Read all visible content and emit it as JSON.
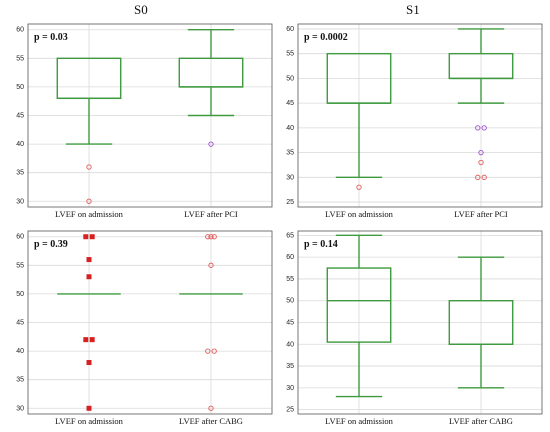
{
  "columns": [
    "S0",
    "S1"
  ],
  "colors": {
    "box": "#3e9a3e",
    "outlier": "#e05a5a",
    "outlier_alt": "#9a4fcf",
    "filled": "#d42020",
    "grid": "#d9d9d9",
    "frame": "#555555"
  },
  "chart_data": [
    {
      "type": "box",
      "column": "S0",
      "row": 1,
      "annotation": "p = 0.03",
      "ylim": [
        29,
        61
      ],
      "yticks": [
        30,
        35,
        40,
        45,
        50,
        55,
        60
      ],
      "categories": [
        "LVEF on admission",
        "LVEF after PCI"
      ],
      "boxes": [
        {
          "whisker_low": 40,
          "q1": 48,
          "median": 48,
          "q3": 55,
          "whisker_high": 55,
          "outliers": [
            {
              "y": 36,
              "style": "open"
            },
            {
              "y": 30,
              "style": "open"
            }
          ]
        },
        {
          "whisker_low": 45,
          "q1": 50,
          "median": 50,
          "q3": 55,
          "whisker_high": 60,
          "outliers": [
            {
              "y": 40,
              "style": "open-alt"
            }
          ]
        }
      ]
    },
    {
      "type": "box",
      "column": "S1",
      "row": 1,
      "annotation": "p = 0.0002",
      "ylim": [
        24,
        61
      ],
      "yticks": [
        25,
        30,
        35,
        40,
        45,
        50,
        55,
        60
      ],
      "categories": [
        "LVEF on admission",
        "LVEF after PCI"
      ],
      "boxes": [
        {
          "whisker_low": 30,
          "q1": 45,
          "median": 45,
          "q3": 55,
          "whisker_high": 55,
          "outliers": [
            {
              "y": 28,
              "style": "open"
            }
          ]
        },
        {
          "whisker_low": 45,
          "q1": 50,
          "median": 50,
          "q3": 55,
          "whisker_high": 60,
          "outliers": [
            {
              "y": 40,
              "style": "open-alt",
              "offset": -1
            },
            {
              "y": 40,
              "style": "open-alt",
              "offset": 1
            },
            {
              "y": 35,
              "style": "open-alt"
            },
            {
              "y": 33,
              "style": "open"
            },
            {
              "y": 30,
              "style": "open",
              "offset": -1
            },
            {
              "y": 30,
              "style": "open",
              "offset": 1
            }
          ]
        }
      ]
    },
    {
      "type": "box",
      "column": "S0",
      "row": 2,
      "annotation": "p = 0.39",
      "ylim": [
        29,
        61
      ],
      "yticks": [
        30,
        35,
        40,
        45,
        50,
        55,
        60
      ],
      "categories": [
        "LVEF on admission",
        "LVEF after CABG"
      ],
      "boxes": [
        {
          "whisker_low": 50,
          "q1": 50,
          "median": 50,
          "q3": 50,
          "whisker_high": 50,
          "outliers": [
            {
              "y": 60,
              "style": "filled",
              "offset": -1
            },
            {
              "y": 60,
              "style": "filled",
              "offset": 1
            },
            {
              "y": 56,
              "style": "filled"
            },
            {
              "y": 53,
              "style": "filled"
            },
            {
              "y": 42,
              "style": "filled",
              "offset": -1
            },
            {
              "y": 42,
              "style": "filled",
              "offset": 1
            },
            {
              "y": 38,
              "style": "filled"
            },
            {
              "y": 30,
              "style": "filled"
            }
          ]
        },
        {
          "whisker_low": 50,
          "q1": 50,
          "median": 50,
          "q3": 50,
          "whisker_high": 50,
          "outliers": [
            {
              "y": 60,
              "style": "open",
              "offset": -1
            },
            {
              "y": 60,
              "style": "open",
              "offset": 0
            },
            {
              "y": 60,
              "style": "open",
              "offset": 1
            },
            {
              "y": 55,
              "style": "open"
            },
            {
              "y": 40,
              "style": "open",
              "offset": -1
            },
            {
              "y": 40,
              "style": "open",
              "offset": 1
            },
            {
              "y": 30,
              "style": "open"
            }
          ]
        }
      ]
    },
    {
      "type": "box",
      "column": "S1",
      "row": 2,
      "annotation": "p = 0.14",
      "ylim": [
        24,
        66
      ],
      "yticks": [
        25,
        30,
        35,
        40,
        45,
        50,
        55,
        60,
        65
      ],
      "categories": [
        "LVEF on admission",
        "LVEF after CABG"
      ],
      "boxes": [
        {
          "whisker_low": 28,
          "q1": 40.5,
          "median": 50,
          "q3": 57.5,
          "whisker_high": 65,
          "outliers": []
        },
        {
          "whisker_low": 30,
          "q1": 40,
          "median": 40,
          "q3": 50,
          "whisker_high": 60,
          "outliers": []
        }
      ]
    }
  ]
}
